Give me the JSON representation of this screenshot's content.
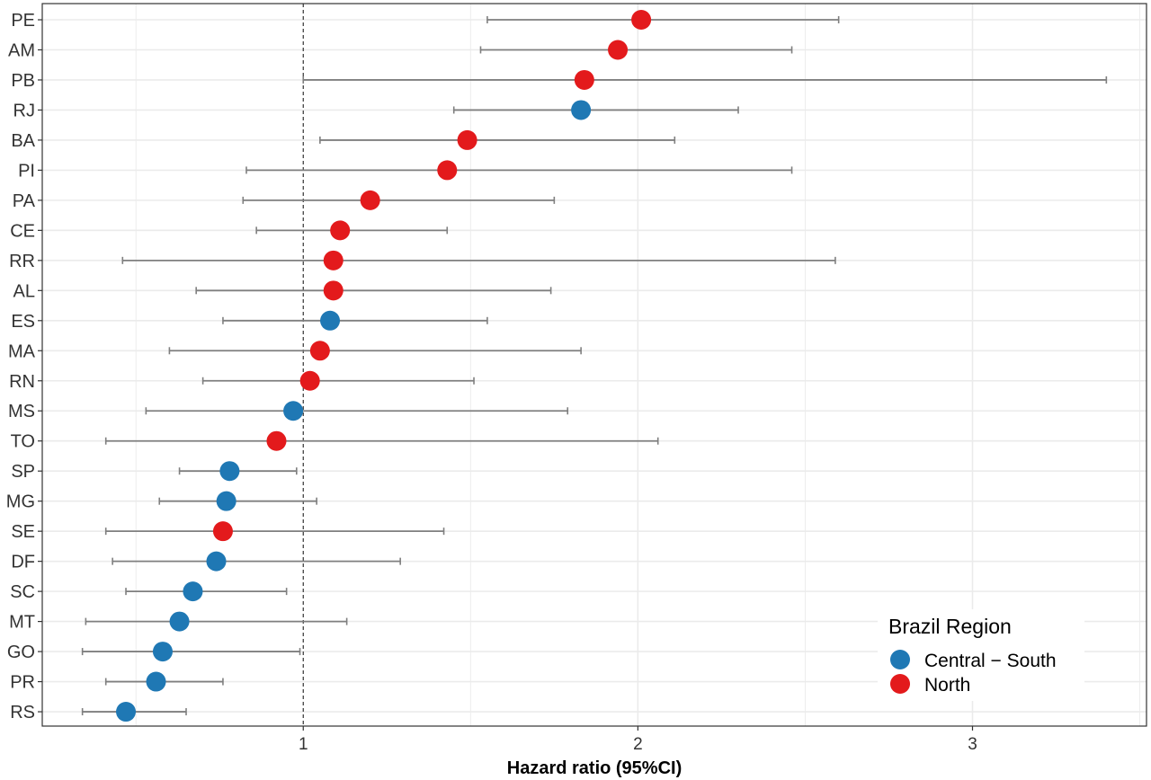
{
  "chart_data": {
    "type": "scatter",
    "title": "",
    "xlabel": "Hazard ratio (95%CI)",
    "ylabel": "",
    "xlim": [
      0.22,
      3.52
    ],
    "x_ticks": [
      1,
      2,
      3
    ],
    "reference_line": 1,
    "grid": true,
    "legend": {
      "title": "Brazil Region",
      "placement": "bottom-right",
      "entries": [
        {
          "name": "Central − South",
          "color": "#1f78b4"
        },
        {
          "name": "North",
          "color": "#e31a1c"
        }
      ]
    },
    "points": [
      {
        "label": "PE",
        "hr": 2.01,
        "lo": 1.55,
        "hi": 2.6,
        "region": "North"
      },
      {
        "label": "AM",
        "hr": 1.94,
        "lo": 1.53,
        "hi": 2.46,
        "region": "North"
      },
      {
        "label": "PB",
        "hr": 1.84,
        "lo": 1.0,
        "hi": 3.4,
        "region": "North"
      },
      {
        "label": "RJ",
        "hr": 1.83,
        "lo": 1.45,
        "hi": 2.3,
        "region": "Central − South"
      },
      {
        "label": "BA",
        "hr": 1.49,
        "lo": 1.05,
        "hi": 2.11,
        "region": "North"
      },
      {
        "label": "PI",
        "hr": 1.43,
        "lo": 0.83,
        "hi": 2.46,
        "region": "North"
      },
      {
        "label": "PA",
        "hr": 1.2,
        "lo": 0.82,
        "hi": 1.75,
        "region": "North"
      },
      {
        "label": "CE",
        "hr": 1.11,
        "lo": 0.86,
        "hi": 1.43,
        "region": "North"
      },
      {
        "label": "RR",
        "hr": 1.09,
        "lo": 0.46,
        "hi": 2.59,
        "region": "North"
      },
      {
        "label": "AL",
        "hr": 1.09,
        "lo": 0.68,
        "hi": 1.74,
        "region": "North"
      },
      {
        "label": "ES",
        "hr": 1.08,
        "lo": 0.76,
        "hi": 1.55,
        "region": "Central − South"
      },
      {
        "label": "MA",
        "hr": 1.05,
        "lo": 0.6,
        "hi": 1.83,
        "region": "North"
      },
      {
        "label": "RN",
        "hr": 1.02,
        "lo": 0.7,
        "hi": 1.51,
        "region": "North"
      },
      {
        "label": "MS",
        "hr": 0.97,
        "lo": 0.53,
        "hi": 1.79,
        "region": "Central − South"
      },
      {
        "label": "TO",
        "hr": 0.92,
        "lo": 0.41,
        "hi": 2.06,
        "region": "North"
      },
      {
        "label": "SP",
        "hr": 0.78,
        "lo": 0.63,
        "hi": 0.98,
        "region": "Central − South"
      },
      {
        "label": "MG",
        "hr": 0.77,
        "lo": 0.57,
        "hi": 1.04,
        "region": "Central − South"
      },
      {
        "label": "SE",
        "hr": 0.76,
        "lo": 0.41,
        "hi": 1.42,
        "region": "North"
      },
      {
        "label": "DF",
        "hr": 0.74,
        "lo": 0.43,
        "hi": 1.29,
        "region": "Central − South"
      },
      {
        "label": "SC",
        "hr": 0.67,
        "lo": 0.47,
        "hi": 0.95,
        "region": "Central − South"
      },
      {
        "label": "MT",
        "hr": 0.63,
        "lo": 0.35,
        "hi": 1.13,
        "region": "Central − South"
      },
      {
        "label": "GO",
        "hr": 0.58,
        "lo": 0.34,
        "hi": 0.99,
        "region": "Central − South"
      },
      {
        "label": "PR",
        "hr": 0.56,
        "lo": 0.41,
        "hi": 0.76,
        "region": "Central − South"
      },
      {
        "label": "RS",
        "hr": 0.47,
        "lo": 0.34,
        "hi": 0.65,
        "region": "Central − South"
      }
    ]
  }
}
